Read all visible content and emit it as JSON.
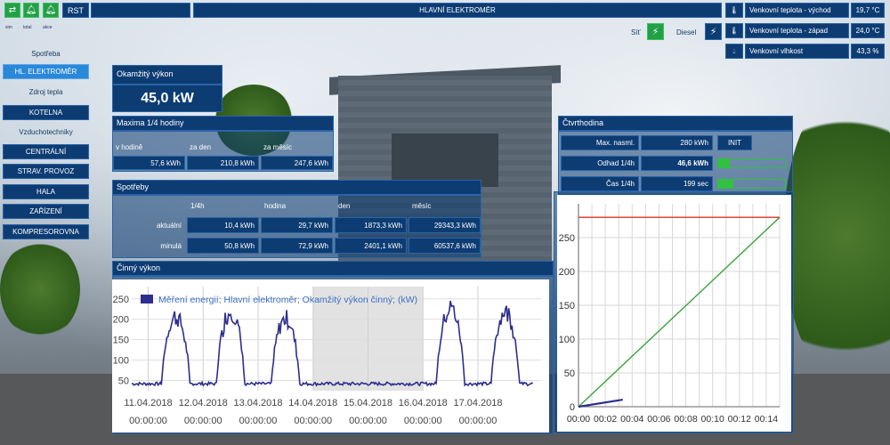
{
  "toolbar": {
    "rst_label": "RST",
    "captions": [
      "sim",
      "total",
      "akce"
    ]
  },
  "main_title": "HLAVNÍ ELEKTROMĚR",
  "weather": [
    {
      "label": "Venkovní teplota - východ",
      "value": "19,7 °C",
      "icon": "thermometer-icon"
    },
    {
      "label": "Venkovní teplota - západ",
      "value": "24,0 °C",
      "icon": "thermometer-icon"
    },
    {
      "label": "Venkovní vlhkost",
      "value": "43,3 %",
      "icon": "droplet-icon"
    }
  ],
  "source": {
    "sit_label": "Síť",
    "diesel_label": "Diesel"
  },
  "nav": {
    "items": [
      {
        "label": "Spotřeba",
        "style": "plain"
      },
      {
        "label": "HL. ELEKTROMĚR",
        "style": "light"
      },
      {
        "label": "Zdroj tepla",
        "style": "plain"
      },
      {
        "label": "KOTELNA",
        "style": "dark"
      },
      {
        "label": "Vzduchotechniky",
        "style": "plain"
      },
      {
        "label": "CENTRÁLNÍ",
        "style": "dark"
      },
      {
        "label": "STRAV. PROVOZ",
        "style": "dark"
      },
      {
        "label": "HALA",
        "style": "dark"
      },
      {
        "label": "ZAŘÍZENÍ",
        "style": "dark"
      },
      {
        "label": "KOMPRESOROVNA",
        "style": "dark"
      }
    ]
  },
  "instant": {
    "title": "Okamžitý výkon",
    "value": "45,0 kW"
  },
  "maxima": {
    "title": "Maxima 1/4 hodiny",
    "headers": [
      "v hodině",
      "za den",
      "za měsíc"
    ],
    "values": [
      "57,6 kWh",
      "210,8 kWh",
      "247,6 kWh"
    ]
  },
  "consumption": {
    "title": "Spotřeby",
    "headers": [
      "1/4h",
      "hodina",
      "den",
      "měsíc"
    ],
    "rows": [
      {
        "label": "aktuální",
        "values": [
          "10,4 kWh",
          "29,7 kWh",
          "1873,3 kWh",
          "29343,3 kWh"
        ]
      },
      {
        "label": "minulá",
        "values": [
          "50,8 kWh",
          "72,9 kWh",
          "2401,1 kWh",
          "60537,6 kWh"
        ]
      }
    ]
  },
  "quarter": {
    "title": "Čtvrthodina",
    "rows": [
      {
        "label": "Max. nasml.",
        "value": "280 kWh",
        "extra": "INIT"
      },
      {
        "label": "Odhad 1/4h",
        "value": "46,6 kWh",
        "progress": 0.17
      },
      {
        "label": "Čas 1/4h",
        "value": "199 sec",
        "progress": 0.22
      }
    ]
  },
  "power_title": "Činný výkon",
  "chart_data": [
    {
      "type": "line",
      "legend": "Měření energií; Hlavní elektroměr; Okamžitý výkon činný; (kW)",
      "color": "#2e2e8e",
      "y_ticks": [
        50,
        100,
        150,
        200,
        250
      ],
      "ylim": [
        25,
        280
      ],
      "x_ticks": [
        "11.04.2018 00:00:00",
        "12.04.2018 00:00:00",
        "13.04.2018 00:00:00",
        "14.04.2018 00:00:00",
        "15.04.2018 00:00:00",
        "16.04.2018 00:00:00",
        "17.04.2018 00:00:00"
      ],
      "x_days": [
        0,
        1,
        2,
        3,
        4,
        5,
        6
      ],
      "xlim": [
        -0.3,
        7.15
      ],
      "weekend_shade": [
        3,
        5
      ],
      "series": [
        {
          "values_daily_peak": [
            230,
            245,
            225,
            45,
            45,
            255,
            245
          ],
          "baseline": 42
        }
      ]
    },
    {
      "type": "line",
      "x_ticks": [
        "00:00",
        "00:02",
        "00:04",
        "00:06",
        "00:08",
        "00:10",
        "00:12",
        "00:14"
      ],
      "xlim": [
        0,
        15
      ],
      "y_ticks": [
        0,
        50,
        100,
        150,
        200,
        250
      ],
      "ylim": [
        0,
        300
      ],
      "series": [
        {
          "color": "#e2332a",
          "x": [
            0,
            15
          ],
          "y": [
            280,
            280
          ]
        },
        {
          "color": "#3aa33a",
          "x": [
            0,
            15
          ],
          "y": [
            0,
            280
          ]
        },
        {
          "color": "#2e2e8e",
          "x": [
            0,
            3.3
          ],
          "y": [
            0,
            10.4
          ]
        }
      ]
    }
  ]
}
